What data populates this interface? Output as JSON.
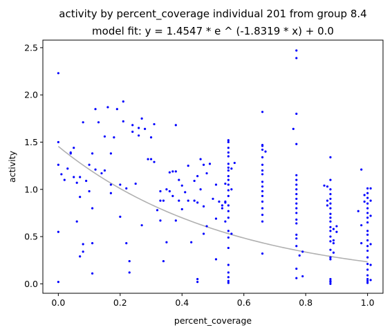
{
  "chart_data": {
    "type": "scatter",
    "title": "activity by percent_coverage individual 201 from group 8.4",
    "subtitle": "model fit: y = 1.4547 * e ^ (-1.8319 * x) + 0.0",
    "xlabel": "percent_coverage",
    "ylabel": "activity",
    "xlim": [
      -0.05,
      1.05
    ],
    "ylim": [
      -0.1,
      2.58
    ],
    "xticks": [
      0.0,
      0.2,
      0.4,
      0.6,
      0.8,
      1.0
    ],
    "xtick_labels": [
      "0.0",
      "0.2",
      "0.4",
      "0.6",
      "0.8",
      "1.0"
    ],
    "yticks": [
      0.0,
      0.5,
      1.0,
      1.5,
      2.0,
      2.5
    ],
    "ytick_labels": [
      "0.0",
      "0.5",
      "1.0",
      "1.5",
      "2.0",
      "2.5"
    ],
    "grid": false,
    "legend": "none",
    "colors": {
      "points": "#0000ff",
      "fit": "#b0b0b0"
    },
    "fit": {
      "a": 1.4547,
      "b": -1.8319,
      "c": 0.0
    },
    "series": [
      {
        "points": [
          [
            0.0,
            2.23
          ],
          [
            0.0,
            1.5
          ],
          [
            0.0,
            1.26
          ],
          [
            0.0,
            0.55
          ],
          [
            0.0,
            0.02
          ],
          [
            0.01,
            1.16
          ],
          [
            0.02,
            1.1
          ],
          [
            0.03,
            1.22
          ],
          [
            0.04,
            1.38
          ],
          [
            0.04,
            1.39
          ],
          [
            0.05,
            1.44
          ],
          [
            0.05,
            1.13
          ],
          [
            0.06,
            1.07
          ],
          [
            0.06,
            0.66
          ],
          [
            0.07,
            1.13
          ],
          [
            0.07,
            0.92
          ],
          [
            0.07,
            0.29
          ],
          [
            0.08,
            0.42
          ],
          [
            0.08,
            0.34
          ],
          [
            0.08,
            1.71
          ],
          [
            0.09,
            1.09
          ],
          [
            0.1,
            1.26
          ],
          [
            0.1,
            0.98
          ],
          [
            0.11,
            1.38
          ],
          [
            0.11,
            0.8
          ],
          [
            0.11,
            0.43
          ],
          [
            0.11,
            0.11
          ],
          [
            0.12,
            1.85
          ],
          [
            0.12,
            1.21
          ],
          [
            0.13,
            1.71
          ],
          [
            0.14,
            1.17
          ],
          [
            0.15,
            1.2
          ],
          [
            0.15,
            1.56
          ],
          [
            0.16,
            1.87
          ],
          [
            0.17,
            1.38
          ],
          [
            0.17,
            1.05
          ],
          [
            0.17,
            0.96
          ],
          [
            0.18,
            1.55
          ],
          [
            0.19,
            1.85
          ],
          [
            0.2,
            1.05
          ],
          [
            0.2,
            0.71
          ],
          [
            0.21,
            1.93
          ],
          [
            0.21,
            1.72
          ],
          [
            0.22,
            1.01
          ],
          [
            0.22,
            0.43
          ],
          [
            0.23,
            0.24
          ],
          [
            0.23,
            0.12
          ],
          [
            0.24,
            1.61
          ],
          [
            0.24,
            1.68
          ],
          [
            0.25,
            1.06
          ],
          [
            0.26,
            1.65
          ],
          [
            0.26,
            1.57
          ],
          [
            0.27,
            1.75
          ],
          [
            0.28,
            1.64
          ],
          [
            0.27,
            0.62
          ],
          [
            0.29,
            1.32
          ],
          [
            0.3,
            1.32
          ],
          [
            0.3,
            1.55
          ],
          [
            0.31,
            1.29
          ],
          [
            0.31,
            1.69
          ],
          [
            0.32,
            0.78
          ],
          [
            0.33,
            0.88
          ],
          [
            0.33,
            0.67
          ],
          [
            0.33,
            0.98
          ],
          [
            0.34,
            0.88
          ],
          [
            0.34,
            0.24
          ],
          [
            0.35,
            0.44
          ],
          [
            0.35,
            1.0
          ],
          [
            0.36,
            1.18
          ],
          [
            0.36,
            0.98
          ],
          [
            0.37,
            1.19
          ],
          [
            0.37,
            0.93
          ],
          [
            0.38,
            1.19
          ],
          [
            0.38,
            0.67
          ],
          [
            0.38,
            1.68
          ],
          [
            0.39,
            1.1
          ],
          [
            0.39,
            0.88
          ],
          [
            0.4,
            1.04
          ],
          [
            0.4,
            0.79
          ],
          [
            0.41,
            0.97
          ],
          [
            0.42,
            1.25
          ],
          [
            0.42,
            0.88
          ],
          [
            0.43,
            0.44
          ],
          [
            0.44,
            1.09
          ],
          [
            0.44,
            0.88
          ],
          [
            0.45,
            1.14
          ],
          [
            0.45,
            0.86
          ],
          [
            0.45,
            0.02
          ],
          [
            0.45,
            0.05
          ],
          [
            0.46,
            1.32
          ],
          [
            0.46,
            1.0
          ],
          [
            0.47,
            1.26
          ],
          [
            0.47,
            0.53
          ],
          [
            0.47,
            0.82
          ],
          [
            0.48,
            1.17
          ],
          [
            0.48,
            0.61
          ],
          [
            0.49,
            1.27
          ],
          [
            0.5,
            0.9
          ],
          [
            0.51,
            1.05
          ],
          [
            0.51,
            0.69
          ],
          [
            0.51,
            0.26
          ],
          [
            0.52,
            0.87
          ],
          [
            0.53,
            0.8
          ],
          [
            0.53,
            0.83
          ],
          [
            0.54,
            1.06
          ],
          [
            0.54,
            0.86
          ],
          [
            0.54,
            0.87
          ],
          [
            0.54,
            0.66
          ],
          [
            0.55,
            1.52
          ],
          [
            0.55,
            1.5
          ],
          [
            0.55,
            1.44
          ],
          [
            0.55,
            1.39
          ],
          [
            0.55,
            1.35
          ],
          [
            0.55,
            1.27
          ],
          [
            0.55,
            1.23
          ],
          [
            0.55,
            1.2
          ],
          [
            0.55,
            1.14
          ],
          [
            0.55,
            1.1
          ],
          [
            0.55,
            1.05
          ],
          [
            0.55,
            0.99
          ],
          [
            0.55,
            0.93
          ],
          [
            0.55,
            0.83
          ],
          [
            0.55,
            0.77
          ],
          [
            0.55,
            0.7
          ],
          [
            0.55,
            0.56
          ],
          [
            0.55,
            0.49
          ],
          [
            0.55,
            0.38
          ],
          [
            0.55,
            0.2
          ],
          [
            0.55,
            0.12
          ],
          [
            0.55,
            0.07
          ],
          [
            0.55,
            0.03
          ],
          [
            0.55,
            0.01
          ],
          [
            0.56,
            1.22
          ],
          [
            0.56,
            1.0
          ],
          [
            0.56,
            0.53
          ],
          [
            0.57,
            1.28
          ],
          [
            0.66,
            1.82
          ],
          [
            0.66,
            1.47
          ],
          [
            0.66,
            1.46
          ],
          [
            0.66,
            1.42
          ],
          [
            0.66,
            1.34
          ],
          [
            0.66,
            1.26
          ],
          [
            0.66,
            1.2
          ],
          [
            0.66,
            1.16
          ],
          [
            0.66,
            1.08
          ],
          [
            0.66,
            1.03
          ],
          [
            0.66,
            0.98
          ],
          [
            0.66,
            0.93
          ],
          [
            0.66,
            0.87
          ],
          [
            0.66,
            0.8
          ],
          [
            0.66,
            0.73
          ],
          [
            0.66,
            0.66
          ],
          [
            0.66,
            0.32
          ],
          [
            0.67,
            1.4
          ],
          [
            0.76,
            1.64
          ],
          [
            0.77,
            2.47
          ],
          [
            0.77,
            2.39
          ],
          [
            0.77,
            1.8
          ],
          [
            0.77,
            1.48
          ],
          [
            0.77,
            1.15
          ],
          [
            0.77,
            1.1
          ],
          [
            0.77,
            1.05
          ],
          [
            0.77,
            1.0
          ],
          [
            0.77,
            0.95
          ],
          [
            0.77,
            0.9
          ],
          [
            0.77,
            0.85
          ],
          [
            0.77,
            0.8
          ],
          [
            0.77,
            0.75
          ],
          [
            0.77,
            0.68
          ],
          [
            0.77,
            0.64
          ],
          [
            0.77,
            0.52
          ],
          [
            0.77,
            0.48
          ],
          [
            0.77,
            0.4
          ],
          [
            0.77,
            0.16
          ],
          [
            0.77,
            0.06
          ],
          [
            0.78,
            0.3
          ],
          [
            0.79,
            0.34
          ],
          [
            0.79,
            0.08
          ],
          [
            0.86,
            1.04
          ],
          [
            0.87,
            0.88
          ],
          [
            0.87,
            0.83
          ],
          [
            0.87,
            1.03
          ],
          [
            0.88,
            1.34
          ],
          [
            0.88,
            1.1
          ],
          [
            0.88,
            1.0
          ],
          [
            0.88,
            0.95
          ],
          [
            0.88,
            0.9
          ],
          [
            0.88,
            0.85
          ],
          [
            0.88,
            0.8
          ],
          [
            0.88,
            0.74
          ],
          [
            0.88,
            0.7
          ],
          [
            0.88,
            0.66
          ],
          [
            0.88,
            0.6
          ],
          [
            0.88,
            0.56
          ],
          [
            0.88,
            0.5
          ],
          [
            0.88,
            0.45
          ],
          [
            0.88,
            0.36
          ],
          [
            0.88,
            0.28
          ],
          [
            0.88,
            0.26
          ],
          [
            0.88,
            0.05
          ],
          [
            0.88,
            0.03
          ],
          [
            0.88,
            0.02
          ],
          [
            0.88,
            0.0
          ],
          [
            0.89,
            0.58
          ],
          [
            0.89,
            0.43
          ],
          [
            0.89,
            0.33
          ],
          [
            0.89,
            0.46
          ],
          [
            0.9,
            0.61
          ],
          [
            0.9,
            0.55
          ],
          [
            0.97,
            0.77
          ],
          [
            0.98,
            1.21
          ],
          [
            0.98,
            0.62
          ],
          [
            0.98,
            0.43
          ],
          [
            0.99,
            0.94
          ],
          [
            0.99,
            0.87
          ],
          [
            1.0,
            1.01
          ],
          [
            1.0,
            0.96
          ],
          [
            1.0,
            0.91
          ],
          [
            1.0,
            0.85
          ],
          [
            1.0,
            0.8
          ],
          [
            1.0,
            0.75
          ],
          [
            1.0,
            0.7
          ],
          [
            1.0,
            0.65
          ],
          [
            1.0,
            0.56
          ],
          [
            1.0,
            0.52
          ],
          [
            1.0,
            0.46
          ],
          [
            1.0,
            0.4
          ],
          [
            1.0,
            0.35
          ],
          [
            1.0,
            0.28
          ],
          [
            1.0,
            0.21
          ],
          [
            1.0,
            0.15
          ],
          [
            1.0,
            0.09
          ],
          [
            1.0,
            0.05
          ],
          [
            1.0,
            0.03
          ],
          [
            1.0,
            0.01
          ],
          [
            1.01,
            1.01
          ],
          [
            1.01,
            0.88
          ],
          [
            1.01,
            0.72
          ],
          [
            1.01,
            0.42
          ],
          [
            1.01,
            0.2
          ],
          [
            1.01,
            0.04
          ]
        ]
      }
    ]
  }
}
